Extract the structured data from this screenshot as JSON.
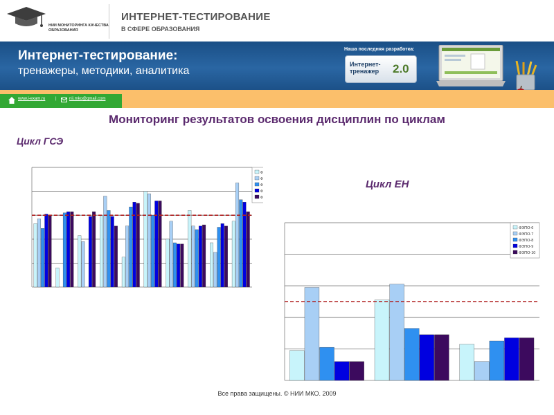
{
  "header": {
    "logo_text": "НИИ МОНИТОРИНГА КАЧЕСТВА ОБРАЗОВАНИЯ",
    "title": "ИНТЕРНЕТ-ТЕСТИРОВАНИЕ",
    "subtitle": "В СФЕРЕ ОБРАЗОВАНИЯ"
  },
  "banner": {
    "title": "Интернет-тестирование:",
    "subtitle": "тренажеры, методики, аналитика",
    "promo_label": "Наша последняя разработка:",
    "promo_name": "Интернет-тренажер",
    "promo_version": "2.0"
  },
  "links": {
    "site": "www.i-exam.ru",
    "separator": "|",
    "email": "nii.mko@gmail.com"
  },
  "main_title": "Мониторинг результатов освоения дисциплин по циклам",
  "cycle_gse_title": "Цикл ГСЭ",
  "cycle_en_title": "Цикл ЕН",
  "footer": "Все права защищены. © НИИ МКО. 2009",
  "colors": {
    "series": [
      "#c8f4fb",
      "#a8cff5",
      "#2f90f0",
      "#0000e0",
      "#3c0a5e"
    ],
    "threshold": "#b02020"
  },
  "chart_data": [
    {
      "type": "bar",
      "title": "",
      "ylim": [
        0,
        100
      ],
      "threshold": 60,
      "grid": true,
      "legend_position": "top-right",
      "series": [
        {
          "name": "ФЭПО-6",
          "values": [
            53,
            16,
            43,
            60,
            25,
            80,
            40,
            64,
            37,
            55
          ]
        },
        {
          "name": "ФЭПО-7",
          "values": [
            57,
            null,
            38,
            76,
            51,
            78,
            55,
            51,
            29,
            87
          ]
        },
        {
          "name": "ФЭПО-8",
          "values": [
            49,
            62,
            null,
            64,
            67,
            60,
            37,
            48,
            50,
            73
          ]
        },
        {
          "name": "ФЭПО-9",
          "values": [
            61,
            63,
            59,
            59,
            71,
            72,
            36,
            51,
            53,
            71
          ]
        },
        {
          "name": "ФЭПО-10",
          "values": [
            60,
            63,
            63,
            51,
            70,
            72,
            36,
            52,
            51,
            63
          ]
        }
      ]
    },
    {
      "type": "bar",
      "title": "",
      "ylim": [
        0,
        100
      ],
      "threshold": 50,
      "grid": true,
      "legend_position": "top-right",
      "series": [
        {
          "name": "ФЭПО-6",
          "values": [
            19,
            51,
            23
          ]
        },
        {
          "name": "ФЭПО-7",
          "values": [
            59,
            61,
            12
          ]
        },
        {
          "name": "ФЭПО-8",
          "values": [
            21,
            33,
            25
          ]
        },
        {
          "name": "ФЭПО-9",
          "values": [
            12,
            29,
            27
          ]
        },
        {
          "name": "ФЭПО-10",
          "values": [
            12,
            29,
            27
          ]
        }
      ]
    }
  ]
}
